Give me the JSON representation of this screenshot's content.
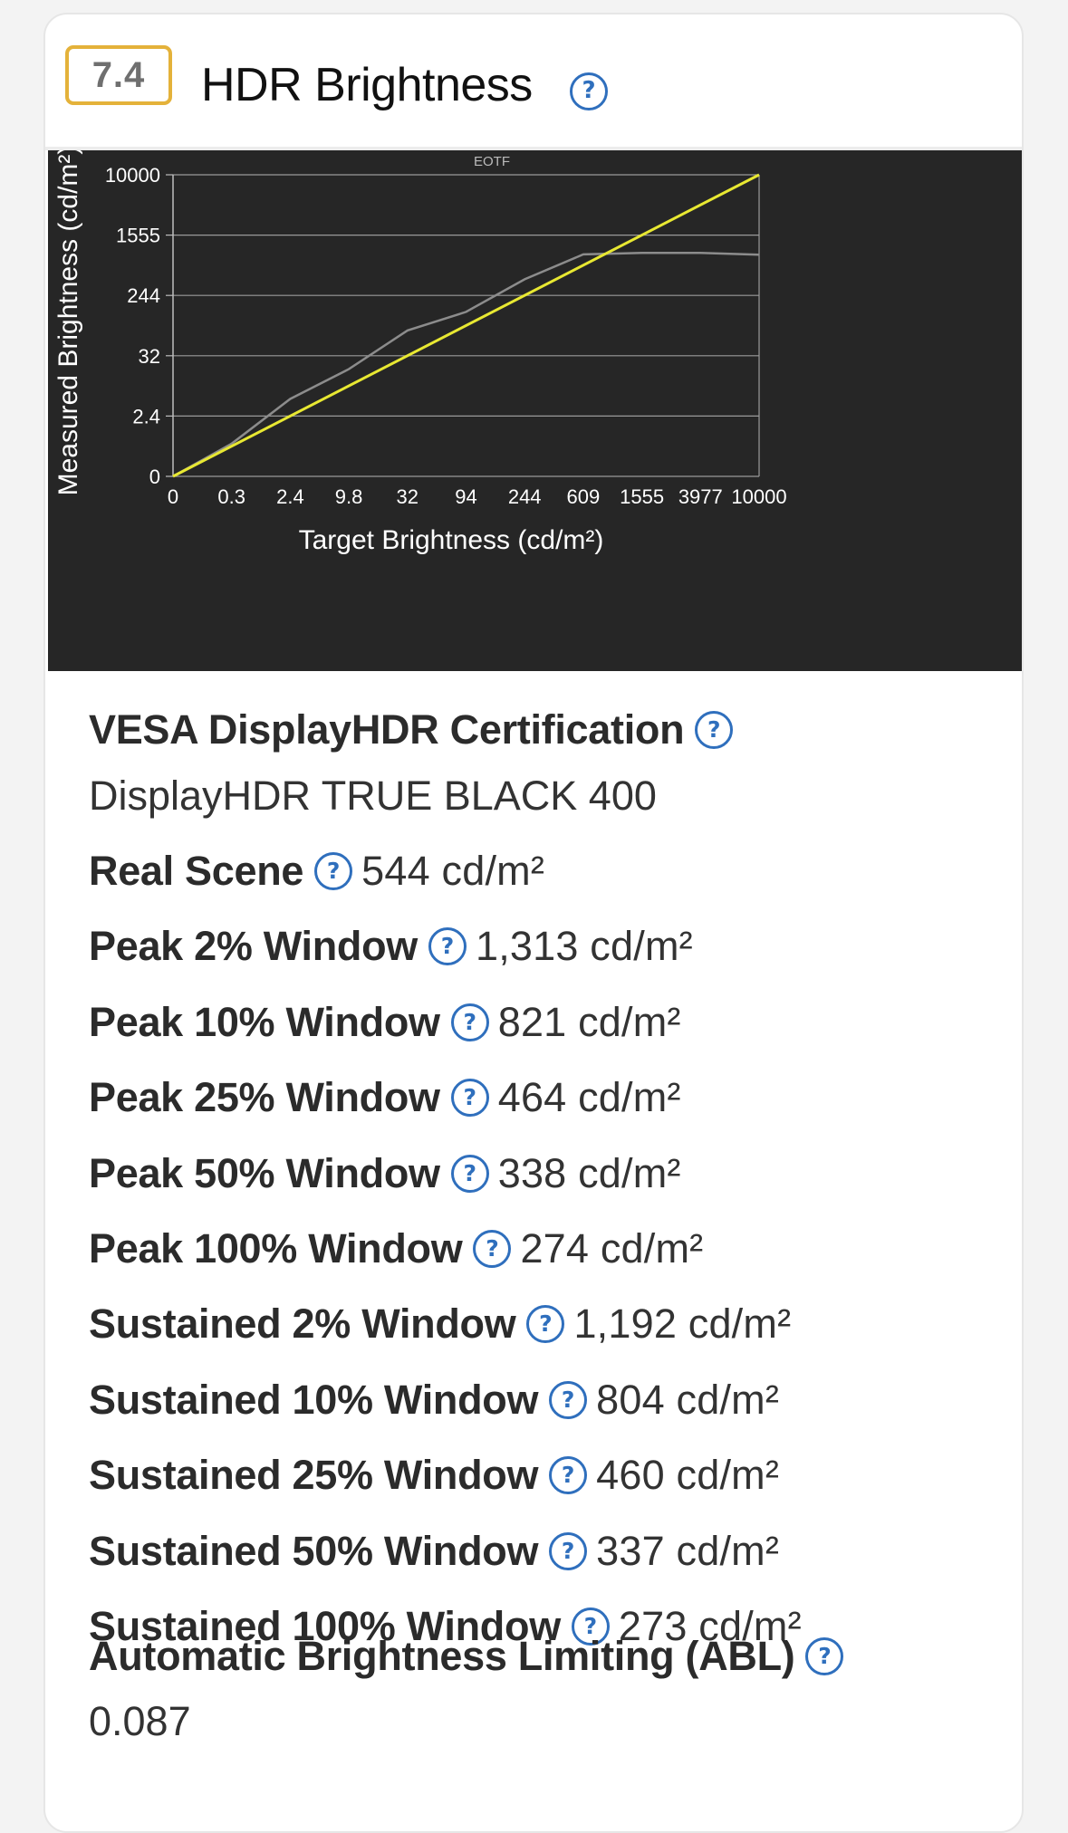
{
  "header": {
    "score": "7.4",
    "title": "HDR Brightness",
    "help_glyph": "?"
  },
  "chart_data": {
    "type": "line",
    "title": "EOTF",
    "xlabel": "Target Brightness (cd/m²)",
    "ylabel": "Measured Brightness (cd/m²)",
    "x_tick_labels": [
      "0",
      "0.3",
      "2.4",
      "9.8",
      "32",
      "94",
      "244",
      "609",
      "1555",
      "3977",
      "10000"
    ],
    "y_tick_labels": [
      "0",
      "2.4",
      "32",
      "244",
      "1555",
      "10000"
    ],
    "x_scale": "PQ (perceptual)",
    "y_scale": "PQ (perceptual)",
    "grid": true,
    "background": "#262626",
    "series": [
      {
        "color": "#e8e832",
        "description": "target",
        "x": [
          "0",
          "10000"
        ],
        "y": [
          0,
          10000
        ]
      },
      {
        "color": "#8c8c8c",
        "description": "measured",
        "x": [
          "0",
          "0.3",
          "2.4",
          "9.8",
          "32",
          "94",
          "244",
          "609",
          "1555",
          "3977",
          "10000"
        ],
        "y": [
          0,
          1.3,
          5,
          18,
          75,
          140,
          400,
          860,
          900,
          900,
          850
        ]
      }
    ]
  },
  "specs": {
    "vesa_label": "VESA DisplayHDR Certification",
    "vesa_value": "DisplayHDR TRUE BLACK 400",
    "items": [
      {
        "label": "Real Scene",
        "value": "544 cd/m²"
      },
      {
        "label": "Peak 2% Window",
        "value": "1,313 cd/m²"
      },
      {
        "label": "Peak 10% Window",
        "value": "821 cd/m²"
      },
      {
        "label": "Peak 25% Window",
        "value": "464 cd/m²"
      },
      {
        "label": "Peak 50% Window",
        "value": "338 cd/m²"
      },
      {
        "label": "Peak 100% Window",
        "value": "274 cd/m²"
      },
      {
        "label": "Sustained 2% Window",
        "value": "1,192 cd/m²"
      },
      {
        "label": "Sustained 10% Window",
        "value": "804 cd/m²"
      },
      {
        "label": "Sustained 25% Window",
        "value": "460 cd/m²"
      },
      {
        "label": "Sustained 50% Window",
        "value": "337 cd/m²"
      },
      {
        "label": "Sustained 100% Window",
        "value": "273 cd/m²"
      }
    ],
    "abl_label": "Automatic Brightness Limiting (ABL)",
    "abl_value": "0.087"
  },
  "colors": {
    "accent_blue": "#2f6fbd",
    "score_border": "#e4b23a"
  }
}
